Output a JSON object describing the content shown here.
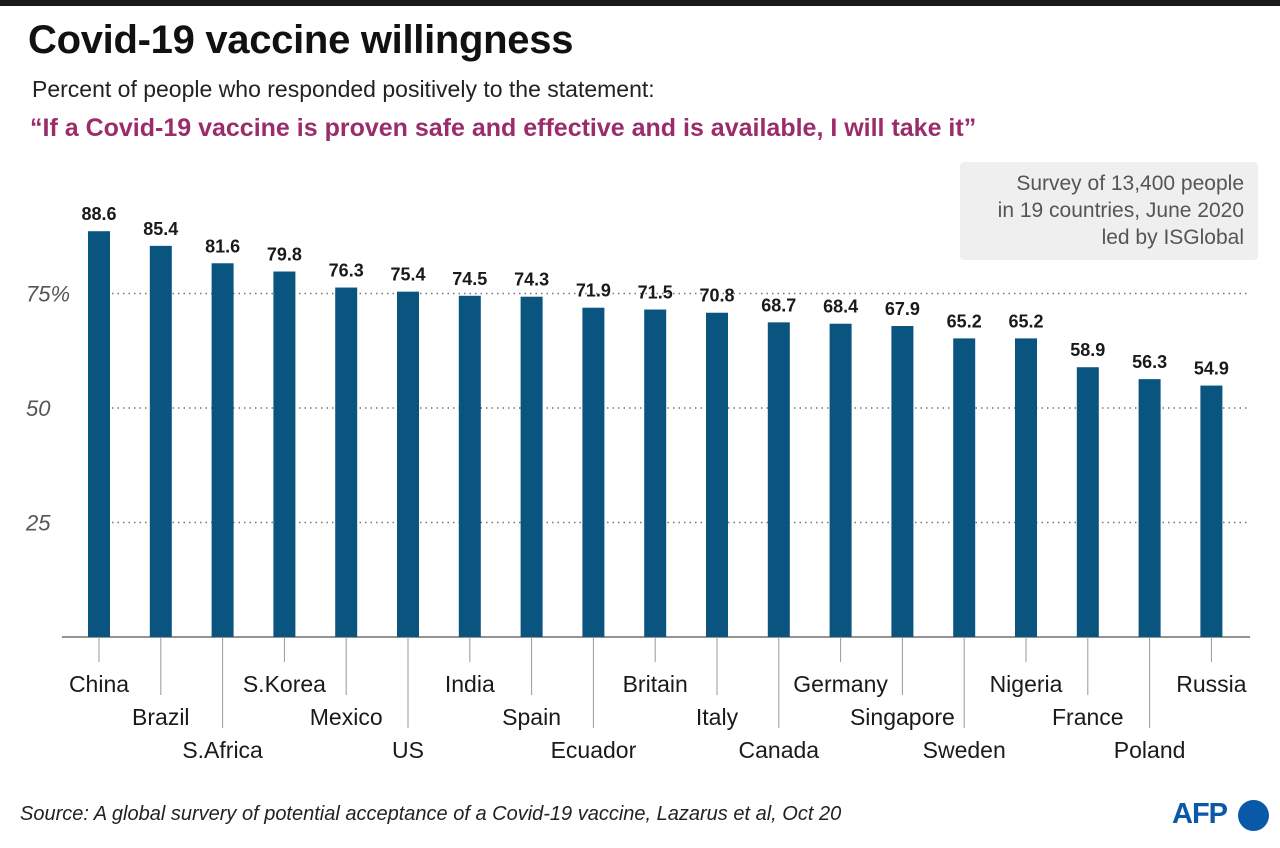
{
  "header": {
    "title": "Covid-19 vaccine willingness",
    "subtitle": "Percent of people who responded positively to the statement:",
    "quote": "“If a Covid-19 vaccine is proven safe and effective and is available, I will take it”"
  },
  "note": {
    "lines": [
      "Survey of 13,400 people",
      "in 19 countries, June 2020",
      "led by ISGlobal"
    ]
  },
  "footer": {
    "source": "Source: A global survery of potential acceptance of a Covid-19 vaccine, Lazarus et al, Oct 20",
    "logo_text": "AFP"
  },
  "chart_data": {
    "type": "bar",
    "categories": [
      "China",
      "Brazil",
      "S.Africa",
      "S.Korea",
      "Mexico",
      "US",
      "India",
      "Spain",
      "Ecuador",
      "Britain",
      "Italy",
      "Canada",
      "Germany",
      "Singapore",
      "Sweden",
      "Nigeria",
      "France",
      "Poland",
      "Russia"
    ],
    "values": [
      88.6,
      85.4,
      81.6,
      79.8,
      76.3,
      75.4,
      74.5,
      74.3,
      71.9,
      71.5,
      70.8,
      68.7,
      68.4,
      67.9,
      65.2,
      65.2,
      58.9,
      56.3,
      54.9
    ],
    "data_labels": [
      "88.6",
      "85.4",
      "81.6",
      "79.8",
      "76.3",
      "75.4",
      "74.5",
      "74.3",
      "71.9",
      "71.5",
      "70.8",
      "68.7",
      "68.4",
      "67.9",
      "65.2",
      "65.2",
      "58.9",
      "56.3",
      "54.9"
    ],
    "label_rows": [
      0,
      1,
      2,
      0,
      1,
      2,
      0,
      1,
      2,
      0,
      1,
      2,
      0,
      1,
      2,
      0,
      1,
      2,
      0
    ],
    "yticks": [
      25,
      50,
      75
    ],
    "ytick_labels": [
      "25",
      "50",
      "75%"
    ],
    "ylim": [
      0,
      100
    ],
    "grid": "dotted-horizontal",
    "colors": {
      "bar": "#0a5480",
      "quote": "#9b2c6a",
      "logo": "#0a58a8"
    }
  }
}
